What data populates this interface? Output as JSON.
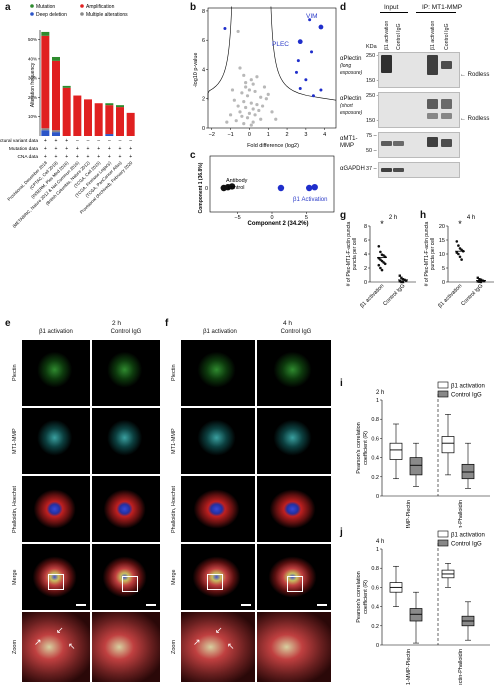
{
  "labels": {
    "a": "a",
    "b": "b",
    "c": "c",
    "d": "d",
    "e": "e",
    "f": "f",
    "g": "g",
    "h": "h",
    "i": "i",
    "j": "j"
  },
  "panel_a": {
    "legend": [
      "Mutation",
      "Amplification",
      "Deep deletion",
      "Multiple alterations"
    ],
    "legend_colors": [
      "#2e8b2e",
      "#e02020",
      "#2c55c8",
      "#888888"
    ],
    "ylabel": "Alteration frequency",
    "yticks": [
      "10%",
      "20%",
      "30%",
      "40%",
      "50%"
    ],
    "track_labels": [
      "Structural variant data",
      "Mutation data",
      "CNA data"
    ],
    "studies": [
      "Provisional, December 2018",
      "(CPTAC, Cell 2019)",
      "(INSERM, Plos Med 2016)",
      "(METABRIC, Nature 2012 & Nat Commun 2016)",
      "(British Columbia, Nature 2012)",
      "(TCGA, Cell 2015)",
      "(TCGA, Firehose Legacy)",
      "(TCGA, PanCancer Atlas)",
      "Provisional (Archived), February 2020"
    ],
    "colors": {
      "mutation": "#2e8b2e",
      "amplification": "#e02020",
      "deep_deletion": "#2c55c8",
      "multiple": "#888888"
    }
  },
  "chart_data": [
    {
      "type": "bar",
      "id": "a",
      "ylabel": "Alteration frequency",
      "ylim": [
        0,
        55
      ],
      "categories": [
        "Provisional, December 2018",
        "(CPTAC, Cell 2019)",
        "(INSERM, Plos Med 2016)",
        "(METABRIC, Nature 2012 & Nat Commun 2016)",
        "(British Columbia, Nature 2012)",
        "(TCGA, Cell 2015)",
        "(TCGA, Firehose Legacy)",
        "(TCGA, PanCancer Atlas)",
        "Provisional (Archived), February 2020"
      ],
      "series": [
        {
          "name": "Deep deletion",
          "values": [
            3,
            2,
            0,
            0,
            0,
            0,
            1,
            0,
            0
          ]
        },
        {
          "name": "Multiple alterations",
          "values": [
            1,
            1,
            0,
            0,
            0,
            0,
            0,
            0,
            0
          ]
        },
        {
          "name": "Amplification",
          "values": [
            48,
            36,
            25,
            21,
            19,
            17,
            15,
            15,
            12
          ]
        },
        {
          "name": "Mutation",
          "values": [
            2,
            2,
            1,
            0,
            0,
            0,
            1,
            1,
            0
          ]
        }
      ]
    },
    {
      "type": "scatter",
      "id": "b",
      "xlabel": "Fold difference (log2)",
      "ylabel": "-log10 p-value",
      "xlim": [
        -2.2,
        4.6
      ],
      "ylim": [
        0,
        8.2
      ],
      "xticks": [
        -2,
        -1,
        0,
        1,
        2,
        3,
        4
      ],
      "yticks": [
        0,
        2,
        4,
        6,
        8
      ],
      "annotations": [
        "VIM",
        "PLEC"
      ],
      "highlight_points": [
        [
          3.8,
          6.9
        ],
        [
          2.7,
          5.9
        ],
        [
          3.3,
          5.2
        ],
        [
          2.5,
          3.8
        ],
        [
          3.0,
          3.3
        ],
        [
          2.7,
          2.7
        ],
        [
          3.8,
          2.6
        ],
        [
          3.4,
          2.2
        ],
        [
          3.2,
          7.4
        ],
        [
          2.6,
          4.6
        ]
      ],
      "background_points": [
        [
          -0.6,
          6.6
        ],
        [
          -0.5,
          4.1
        ],
        [
          -0.3,
          3.6
        ],
        [
          0.1,
          3.3
        ],
        [
          0.4,
          3.5
        ],
        [
          0.2,
          3.0
        ],
        [
          -0.2,
          2.8
        ],
        [
          0.0,
          2.6
        ],
        [
          0.3,
          2.5
        ],
        [
          -0.4,
          2.4
        ],
        [
          -0.1,
          2.2
        ],
        [
          0.6,
          2.1
        ],
        [
          1.0,
          2.3
        ],
        [
          0.9,
          2.0
        ],
        [
          -0.3,
          1.8
        ],
        [
          0.1,
          1.7
        ],
        [
          0.4,
          1.6
        ],
        [
          -0.6,
          1.5
        ],
        [
          -0.2,
          1.4
        ],
        [
          0.2,
          1.3
        ],
        [
          0.5,
          1.2
        ],
        [
          -0.5,
          1.1
        ],
        [
          0.0,
          1.0
        ],
        [
          0.3,
          0.9
        ],
        [
          -0.4,
          0.8
        ],
        [
          -0.1,
          0.7
        ],
        [
          0.6,
          0.6
        ],
        [
          -0.7,
          0.5
        ],
        [
          0.2,
          0.4
        ],
        [
          -0.3,
          0.3
        ],
        [
          0.1,
          0.2
        ],
        [
          -0.8,
          1.9
        ],
        [
          0.7,
          1.5
        ],
        [
          1.2,
          1.1
        ],
        [
          -1.0,
          0.9
        ],
        [
          1.4,
          0.6
        ],
        [
          -1.2,
          0.4
        ],
        [
          -0.9,
          2.6
        ],
        [
          0.8,
          2.8
        ],
        [
          -0.2,
          3.1
        ]
      ]
    },
    {
      "type": "scatter",
      "id": "c",
      "xlabel": "Component 2 (34.2%)",
      "ylabel": "Component 1 (36.8%)",
      "xlim": [
        -9,
        9
      ],
      "ylim": [
        -3,
        4
      ],
      "xticks": [
        -5,
        0,
        5
      ],
      "yticks": [
        0
      ],
      "groups": [
        {
          "name": "Antibody control",
          "points": [
            [
              -7.0,
              0.0
            ],
            [
              -6.4,
              0.1
            ],
            [
              -5.8,
              0.2
            ]
          ]
        },
        {
          "name": "β1 Activation",
          "points": [
            [
              1.3,
              0.0
            ],
            [
              5.4,
              0.0
            ],
            [
              6.2,
              0.1
            ]
          ]
        }
      ]
    },
    {
      "type": "scatter",
      "id": "g",
      "title": "2 h",
      "ylabel": "# of Plec-MT1-F-actin puncta per cell",
      "ylim": [
        0,
        8
      ],
      "yticks": [
        0,
        2,
        4,
        6,
        8
      ],
      "categories": [
        "β1 activation",
        "Control IgG"
      ],
      "mean": [
        3.5,
        0.3
      ],
      "points": [
        [
          5.1,
          4.3,
          3.9,
          3.8,
          3.6,
          3.4,
          3.2,
          3.0,
          2.8,
          2.6,
          2.4,
          2.0,
          1.7
        ],
        [
          0.9,
          0.6,
          0.4,
          0.3,
          0.2,
          0.1,
          0.0,
          0.0
        ]
      ],
      "significance": "*"
    },
    {
      "type": "scatter",
      "id": "h",
      "title": "4 h",
      "ylabel": "# of Plec-MT1-F-actin puncta per cell",
      "ylim": [
        0,
        20
      ],
      "yticks": [
        0,
        5,
        10,
        15,
        20
      ],
      "categories": [
        "β1 activation",
        "Control IgG"
      ],
      "mean": [
        11,
        0.5
      ],
      "points": [
        [
          14.5,
          13,
          12,
          11.5,
          11,
          10.5,
          10,
          9,
          8
        ],
        [
          1.5,
          1,
          0.8,
          0.5,
          0.3,
          0.2,
          0.1,
          0
        ]
      ],
      "significance": "*"
    },
    {
      "type": "box",
      "id": "i",
      "title": "2 h",
      "ylabel": "Pearson's correlation coefficient (R)",
      "ylim": [
        0,
        1.0
      ],
      "yticks": [
        0,
        0.2,
        0.4,
        0.6,
        0.8,
        1.0
      ],
      "groups": [
        "MT1-MMP-Plectin",
        "Plectin-Phalloidin"
      ],
      "series": [
        {
          "name": "β1 activation",
          "boxes": [
            {
              "min": 0.18,
              "q1": 0.38,
              "median": 0.48,
              "q3": 0.55,
              "max": 0.75
            },
            {
              "min": 0.22,
              "q1": 0.45,
              "median": 0.55,
              "q3": 0.62,
              "max": 0.85
            }
          ]
        },
        {
          "name": "Control IgG",
          "boxes": [
            {
              "min": 0.1,
              "q1": 0.22,
              "median": 0.32,
              "q3": 0.4,
              "max": 0.55
            },
            {
              "min": 0.08,
              "q1": 0.18,
              "median": 0.25,
              "q3": 0.33,
              "max": 0.55
            }
          ]
        }
      ]
    },
    {
      "type": "box",
      "id": "j",
      "title": "4 h",
      "ylabel": "Pearson's correlation coefficient (R)",
      "ylim": [
        0,
        1.0
      ],
      "yticks": [
        0,
        0.2,
        0.4,
        0.6,
        0.8,
        1.0
      ],
      "groups": [
        "MT1-MMP-Plectin",
        "Plectin-Phalloidin"
      ],
      "series": [
        {
          "name": "β1 activation",
          "boxes": [
            {
              "min": 0.4,
              "q1": 0.55,
              "median": 0.6,
              "q3": 0.65,
              "max": 0.82
            },
            {
              "min": 0.6,
              "q1": 0.7,
              "median": 0.74,
              "q3": 0.78,
              "max": 0.85
            }
          ]
        },
        {
          "name": "Control IgG",
          "boxes": [
            {
              "min": 0.02,
              "q1": 0.25,
              "median": 0.32,
              "q3": 0.38,
              "max": 0.55
            },
            {
              "min": 0.05,
              "q1": 0.2,
              "median": 0.25,
              "q3": 0.3,
              "max": 0.45
            }
          ]
        }
      ]
    }
  ],
  "panel_b": {
    "ann_vim": "VIM",
    "ann_plec": "PLEC",
    "xlabel": "Fold difference (log2)",
    "ylabel": "-log10 p-value"
  },
  "panel_c": {
    "ann_ctrl": "Antibody control",
    "ann_act": "β1 Activation",
    "xlabel": "Component 2 (34.2%)",
    "ylabel": "Component 1 (36.8%)"
  },
  "panel_d": {
    "header_input": "Input",
    "header_ip": "IP: MT1-MMP",
    "kda": "KDa",
    "lanes": [
      "β1 activation",
      "Control IgG",
      "β1 activation",
      "Control IgG"
    ],
    "rows": [
      {
        "label": "αPlectin",
        "sublabel": "(long exposure)",
        "markers": [
          "250",
          "150"
        ],
        "arrow": "Rodless"
      },
      {
        "label": "αPlectin",
        "sublabel": "(short exposure)",
        "markers": [
          "250",
          "150"
        ],
        "arrow": "Rodless"
      },
      {
        "label": "αMT1-MMP",
        "sublabel": "",
        "markers": [
          "75",
          "50"
        ],
        "arrow": ""
      },
      {
        "label": "αGAPDH",
        "sublabel": "",
        "markers": [
          "37"
        ],
        "arrow": ""
      }
    ]
  },
  "panel_e": {
    "time": "2 h",
    "cols": [
      "β1 activation",
      "Control IgG"
    ],
    "rows": [
      "Plectin",
      "MT1-MMP",
      "Phalloidin, Hoechst",
      "Merge",
      "Zoom"
    ]
  },
  "panel_f": {
    "time": "4 h",
    "cols": [
      "β1 activation",
      "Control IgG"
    ],
    "rows": [
      "Plectin",
      "MT1-MMP",
      "Phalloidin, Hoechst",
      "Merge",
      "Zoom"
    ]
  },
  "panel_i": {
    "legend": [
      "β1 activation",
      "Control IgG"
    ],
    "title": "2 h"
  },
  "panel_j": {
    "legend": [
      "β1 activation",
      "Control IgG"
    ],
    "title": "4 h"
  }
}
